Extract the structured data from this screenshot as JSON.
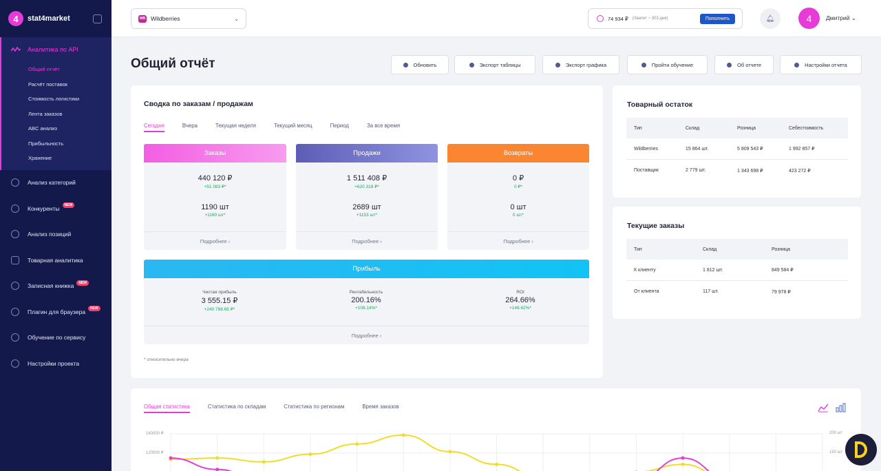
{
  "brand": {
    "logo_glyph": "4",
    "name": "stat4market",
    "accent": "#e63bd6"
  },
  "sidebar": {
    "active_section": "Аналитика по API",
    "sub_items": [
      "Общий отчёт",
      "Расчёт поставок",
      "Стоимость логистики",
      "Лента заказов",
      "ABC анализ",
      "Прибыльность",
      "Хранение"
    ],
    "items": [
      {
        "label": "Анализ категорий",
        "icon": "category-icon",
        "badge": ""
      },
      {
        "label": "Конкуренты",
        "icon": "star-icon",
        "badge": "NEW"
      },
      {
        "label": "Анализ позиций",
        "icon": "position-icon",
        "badge": ""
      },
      {
        "label": "Товарная аналитика",
        "icon": "grid-icon",
        "badge": ""
      },
      {
        "label": "Записная книжка",
        "icon": "notebook-icon",
        "badge": "NEW"
      },
      {
        "label": "Плагин для браузера",
        "icon": "plugin-icon",
        "badge": "NEW"
      },
      {
        "label": "Обучение по сервису",
        "icon": "learning-icon",
        "badge": ""
      },
      {
        "label": "Настройки проекта",
        "icon": "gear-icon",
        "badge": ""
      }
    ]
  },
  "header": {
    "marketplace_logo": "WB",
    "marketplace": "Wildberries",
    "balance": "74 934 ₽",
    "balance_note": "(Хватит ~ 303 дня)",
    "topup_label": "Пополнить",
    "avatar_initial": "4",
    "user_name": "Дмитрий"
  },
  "page": {
    "title": "Общий отчёт",
    "actions": [
      "Обновить",
      "Экспорт таблицы",
      "Экспорт графика",
      "Пройти обучение",
      "Об отчете",
      "Настройки отчета"
    ]
  },
  "summary": {
    "title": "Сводка по заказам / продажам",
    "tabs": [
      "Сегодня",
      "Вчера",
      "Текущая неделя",
      "Текущий месяц",
      "Период",
      "За все время"
    ],
    "metrics": [
      {
        "name": "Заказы",
        "color": "#f35ee2",
        "value1": "440 120 ₽",
        "delta1": "+51 083 ₽*",
        "value2": "1190 шт",
        "delta2": "+1160 шт*"
      },
      {
        "name": "Продажи",
        "color": "#6a6cc4",
        "value1": "1 511 408 ₽",
        "delta1": "+620 318 ₽*",
        "value2": "2689 шт",
        "delta2": "+1153 шт*"
      },
      {
        "name": "Возвраты",
        "color": "#fb8632",
        "value1": "0 ₽",
        "delta1": "0 ₽*",
        "value2": "0 шт",
        "delta2": "0 шт*"
      }
    ],
    "more_label": "Подробнее ›",
    "profit": {
      "name": "Прибыль",
      "color": "#12c3f5",
      "cols": [
        {
          "label": "Чистая прибыль",
          "value": "3 555.15 ₽",
          "delta": "+240 788.65 ₽*"
        },
        {
          "label": "Рентабельность",
          "value": "200.16%",
          "delta": "+108.14%*"
        },
        {
          "label": "ROI",
          "value": "264.66%",
          "delta": "+146.62%*"
        }
      ]
    },
    "footnote": "* относительно вчера"
  },
  "stock": {
    "title": "Товарный остаток",
    "headers": [
      "Тип",
      "Склад",
      "Розница",
      "Себестоимость"
    ],
    "rows": [
      [
        "Wildberries",
        "15 864 шт.",
        "5 809 543 ₽",
        "1 992 857 ₽"
      ],
      [
        "Поставщик",
        "2 779 шт.",
        "1 343 698 ₽",
        "423 272 ₽"
      ]
    ]
  },
  "orders": {
    "title": "Текущие заказы",
    "headers": [
      "Тип",
      "Склад",
      "Розница"
    ],
    "rows": [
      [
        "К клиенту",
        "1 812 шт.",
        "849 584 ₽"
      ],
      [
        "От клиента",
        "117 шт.",
        "79 978 ₽"
      ]
    ]
  },
  "stats": {
    "tabs": [
      "Общая статистика",
      "Статистика по складам",
      "Статистика по регионам",
      "Время заказов"
    ],
    "chart_icons": [
      "line-chart-icon",
      "bar-chart-icon"
    ]
  },
  "chart_data": {
    "type": "line",
    "y_ticks_left": [
      "140000 ₽",
      "120000 ₽"
    ],
    "y_ticks_right": [
      "200 шт",
      "150 шт"
    ],
    "series": [
      {
        "color": "#f2dc2a",
        "values": [
          120000,
          121000,
          118000,
          124000,
          132000,
          139000,
          126000,
          116000,
          105000,
          104000,
          110000,
          116000,
          104000,
          103000,
          104000
        ]
      },
      {
        "color": "#e63bd6",
        "values": [
          121000,
          112000,
          103000,
          104000,
          105000,
          104000,
          103000,
          104000,
          103000,
          103000,
          104000,
          121000,
          104000,
          103000,
          104000
        ]
      }
    ],
    "ylim": [
      100000,
      140000
    ]
  }
}
